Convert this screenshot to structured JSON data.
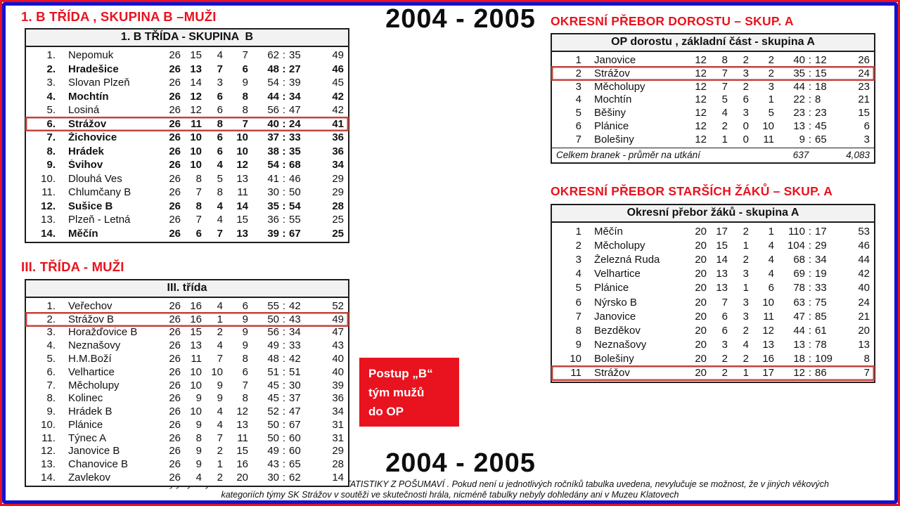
{
  "season": {
    "top": "2004 - 2005",
    "bottom": "2004 - 2005"
  },
  "tables": [
    {
      "heading": "1. B TŘÍDA , SKUPINA B –MUŽI",
      "table_title": "1. B TŘÍDA - SKUPINA  B",
      "rows": [
        {
          "pos": "1.",
          "team": "Nepomuk",
          "gp": "26",
          "w": "15",
          "d": "4",
          "l": "7",
          "gf": "62",
          "ga": "35",
          "pts": "49",
          "bold": false,
          "highlight": false
        },
        {
          "pos": "2.",
          "team": "Hradešice",
          "gp": "26",
          "w": "13",
          "d": "7",
          "l": "6",
          "gf": "48",
          "ga": "27",
          "pts": "46",
          "bold": true,
          "highlight": false
        },
        {
          "pos": "3.",
          "team": "Slovan Plzeň",
          "gp": "26",
          "w": "14",
          "d": "3",
          "l": "9",
          "gf": "54",
          "ga": "39",
          "pts": "45",
          "bold": false,
          "highlight": false
        },
        {
          "pos": "4.",
          "team": "Mochtín",
          "gp": "26",
          "w": "12",
          "d": "6",
          "l": "8",
          "gf": "44",
          "ga": "34",
          "pts": "42",
          "bold": true,
          "highlight": false
        },
        {
          "pos": "5.",
          "team": "Losiná",
          "gp": "26",
          "w": "12",
          "d": "6",
          "l": "8",
          "gf": "56",
          "ga": "47",
          "pts": "42",
          "bold": false,
          "highlight": false
        },
        {
          "pos": "6.",
          "team": "Strážov",
          "gp": "26",
          "w": "11",
          "d": "8",
          "l": "7",
          "gf": "40",
          "ga": "24",
          "pts": "41",
          "bold": true,
          "highlight": true
        },
        {
          "pos": "7.",
          "team": "Žichovice",
          "gp": "26",
          "w": "10",
          "d": "6",
          "l": "10",
          "gf": "37",
          "ga": "33",
          "pts": "36",
          "bold": true,
          "highlight": false
        },
        {
          "pos": "8.",
          "team": "Hrádek",
          "gp": "26",
          "w": "10",
          "d": "6",
          "l": "10",
          "gf": "38",
          "ga": "35",
          "pts": "36",
          "bold": true,
          "highlight": false
        },
        {
          "pos": "9.",
          "team": "Švihov",
          "gp": "26",
          "w": "10",
          "d": "4",
          "l": "12",
          "gf": "54",
          "ga": "68",
          "pts": "34",
          "bold": true,
          "highlight": false
        },
        {
          "pos": "10.",
          "team": "Dlouhá Ves",
          "gp": "26",
          "w": "8",
          "d": "5",
          "l": "13",
          "gf": "41",
          "ga": "46",
          "pts": "29",
          "bold": false,
          "highlight": false
        },
        {
          "pos": "11.",
          "team": "Chlumčany B",
          "gp": "26",
          "w": "7",
          "d": "8",
          "l": "11",
          "gf": "30",
          "ga": "50",
          "pts": "29",
          "bold": false,
          "highlight": false
        },
        {
          "pos": "12.",
          "team": "Sušice  B",
          "gp": "26",
          "w": "8",
          "d": "4",
          "l": "14",
          "gf": "35",
          "ga": "54",
          "pts": "28",
          "bold": true,
          "highlight": false
        },
        {
          "pos": "13.",
          "team": "Plzeň - Letná",
          "gp": "26",
          "w": "7",
          "d": "4",
          "l": "15",
          "gf": "36",
          "ga": "55",
          "pts": "25",
          "bold": false,
          "highlight": false
        },
        {
          "pos": "14.",
          "team": "Měčín",
          "gp": "26",
          "w": "6",
          "d": "7",
          "l": "13",
          "gf": "39",
          "ga": "67",
          "pts": "25",
          "bold": true,
          "highlight": false
        }
      ]
    },
    {
      "heading": "III. TŘÍDA - MUŽI",
      "table_title": "III. třída",
      "rows": [
        {
          "pos": "1.",
          "team": "Veřechov",
          "gp": "26",
          "w": "16",
          "d": "4",
          "l": "6",
          "gf": "55",
          "ga": "42",
          "pts": "52",
          "bold": false,
          "highlight": false
        },
        {
          "pos": "2.",
          "team": "Strážov B",
          "gp": "26",
          "w": "16",
          "d": "1",
          "l": "9",
          "gf": "50",
          "ga": "43",
          "pts": "49",
          "bold": false,
          "highlight": true
        },
        {
          "pos": "3.",
          "team": "Horažďovice  B",
          "gp": "26",
          "w": "15",
          "d": "2",
          "l": "9",
          "gf": "56",
          "ga": "34",
          "pts": "47",
          "bold": false,
          "highlight": false
        },
        {
          "pos": "4.",
          "team": "Neznašovy",
          "gp": "26",
          "w": "13",
          "d": "4",
          "l": "9",
          "gf": "49",
          "ga": "33",
          "pts": "43",
          "bold": false,
          "highlight": false
        },
        {
          "pos": "5.",
          "team": "H.M.Boží",
          "gp": "26",
          "w": "11",
          "d": "7",
          "l": "8",
          "gf": "48",
          "ga": "42",
          "pts": "40",
          "bold": false,
          "highlight": false
        },
        {
          "pos": "6.",
          "team": "Velhartice",
          "gp": "26",
          "w": "10",
          "d": "10",
          "l": "6",
          "gf": "51",
          "ga": "51",
          "pts": "40",
          "bold": false,
          "highlight": false
        },
        {
          "pos": "7.",
          "team": "Měcholupy",
          "gp": "26",
          "w": "10",
          "d": "9",
          "l": "7",
          "gf": "45",
          "ga": "30",
          "pts": "39",
          "bold": false,
          "highlight": false
        },
        {
          "pos": "8.",
          "team": "Kolinec",
          "gp": "26",
          "w": "9",
          "d": "9",
          "l": "8",
          "gf": "45",
          "ga": "37",
          "pts": "36",
          "bold": false,
          "highlight": false
        },
        {
          "pos": "9.",
          "team": "Hrádek  B",
          "gp": "26",
          "w": "10",
          "d": "4",
          "l": "12",
          "gf": "52",
          "ga": "47",
          "pts": "34",
          "bold": false,
          "highlight": false
        },
        {
          "pos": "10.",
          "team": "Plánice",
          "gp": "26",
          "w": "9",
          "d": "4",
          "l": "13",
          "gf": "50",
          "ga": "67",
          "pts": "31",
          "bold": false,
          "highlight": false
        },
        {
          "pos": "11.",
          "team": "Týnec A",
          "gp": "26",
          "w": "8",
          "d": "7",
          "l": "11",
          "gf": "50",
          "ga": "60",
          "pts": "31",
          "bold": false,
          "highlight": false
        },
        {
          "pos": "12.",
          "team": "Janovice  B",
          "gp": "26",
          "w": "9",
          "d": "2",
          "l": "15",
          "gf": "49",
          "ga": "60",
          "pts": "29",
          "bold": false,
          "highlight": false
        },
        {
          "pos": "13.",
          "team": "Chanovice B",
          "gp": "26",
          "w": "9",
          "d": "1",
          "l": "16",
          "gf": "43",
          "ga": "65",
          "pts": "28",
          "bold": false,
          "highlight": false
        },
        {
          "pos": "14.",
          "team": "Zavlekov",
          "gp": "26",
          "w": "4",
          "d": "2",
          "l": "20",
          "gf": "30",
          "ga": "62",
          "pts": "14",
          "bold": false,
          "highlight": false
        }
      ]
    },
    {
      "heading": "OKRESNÍ PŘEBOR  DOROSTU – SKUP. A",
      "table_title": "OP dorostu , základní část - skupina A",
      "rows": [
        {
          "pos": "1",
          "team": "Janovice",
          "gp": "12",
          "w": "8",
          "d": "2",
          "l": "2",
          "gf": "40",
          "ga": "12",
          "pts": "26",
          "bold": false,
          "highlight": false
        },
        {
          "pos": "2",
          "team": "Strážov",
          "gp": "12",
          "w": "7",
          "d": "3",
          "l": "2",
          "gf": "35",
          "ga": "15",
          "pts": "24",
          "bold": false,
          "highlight": true
        },
        {
          "pos": "3",
          "team": "Měcholupy",
          "gp": "12",
          "w": "7",
          "d": "2",
          "l": "3",
          "gf": "44",
          "ga": "18",
          "pts": "23",
          "bold": false,
          "highlight": false
        },
        {
          "pos": "4",
          "team": "Mochtín",
          "gp": "12",
          "w": "5",
          "d": "6",
          "l": "1",
          "gf": "22",
          "ga": "8",
          "pts": "21",
          "bold": false,
          "highlight": false
        },
        {
          "pos": "5",
          "team": "Běšiny",
          "gp": "12",
          "w": "4",
          "d": "3",
          "l": "5",
          "gf": "23",
          "ga": "23",
          "pts": "15",
          "bold": false,
          "highlight": false
        },
        {
          "pos": "6",
          "team": "Plánice",
          "gp": "12",
          "w": "2",
          "d": "0",
          "l": "10",
          "gf": "13",
          "ga": "45",
          "pts": "6",
          "bold": false,
          "highlight": false
        },
        {
          "pos": "7",
          "team": "Bolešiny",
          "gp": "12",
          "w": "1",
          "d": "0",
          "l": "11",
          "gf": "9",
          "ga": "65",
          "pts": "3",
          "bold": false,
          "highlight": false
        }
      ],
      "footer": {
        "label": "Celkem branek  - průměr na utkání",
        "goals": "637",
        "avg": "4,083"
      }
    },
    {
      "heading": "OKRESNÍ PŘEBOR  STARŠÍCH ŽÁKŮ – SKUP. A",
      "table_title": "Okresní přebor žáků - skupina A",
      "rows": [
        {
          "pos": "1",
          "team": "Měčín",
          "gp": "20",
          "w": "17",
          "d": "2",
          "l": "1",
          "gf": "110",
          "ga": "17",
          "pts": "53",
          "bold": false,
          "highlight": false
        },
        {
          "pos": "2",
          "team": "Měcholupy",
          "gp": "20",
          "w": "15",
          "d": "1",
          "l": "4",
          "gf": "104",
          "ga": "29",
          "pts": "46",
          "bold": false,
          "highlight": false
        },
        {
          "pos": "3",
          "team": "Železná Ruda",
          "gp": "20",
          "w": "14",
          "d": "2",
          "l": "4",
          "gf": "68",
          "ga": "34",
          "pts": "44",
          "bold": false,
          "highlight": false
        },
        {
          "pos": "4",
          "team": "Velhartice",
          "gp": "20",
          "w": "13",
          "d": "3",
          "l": "4",
          "gf": "69",
          "ga": "19",
          "pts": "42",
          "bold": false,
          "highlight": false
        },
        {
          "pos": "5",
          "team": "Plánice",
          "gp": "20",
          "w": "13",
          "d": "1",
          "l": "6",
          "gf": "78",
          "ga": "33",
          "pts": "40",
          "bold": false,
          "highlight": false
        },
        {
          "pos": "6",
          "team": "Nýrsko  B",
          "gp": "20",
          "w": "7",
          "d": "3",
          "l": "10",
          "gf": "63",
          "ga": "75",
          "pts": "24",
          "bold": false,
          "highlight": false
        },
        {
          "pos": "7",
          "team": "Janovice",
          "gp": "20",
          "w": "6",
          "d": "3",
          "l": "11",
          "gf": "47",
          "ga": "85",
          "pts": "21",
          "bold": false,
          "highlight": false
        },
        {
          "pos": "8",
          "team": "Bezděkov",
          "gp": "20",
          "w": "6",
          "d": "2",
          "l": "12",
          "gf": "44",
          "ga": "61",
          "pts": "20",
          "bold": false,
          "highlight": false
        },
        {
          "pos": "9",
          "team": "Neznašovy",
          "gp": "20",
          "w": "3",
          "d": "4",
          "l": "13",
          "gf": "13",
          "ga": "78",
          "pts": "13",
          "bold": false,
          "highlight": false
        },
        {
          "pos": "10",
          "team": "Bolešiny",
          "gp": "20",
          "w": "2",
          "d": "2",
          "l": "16",
          "gf": "18",
          "ga": "109",
          "pts": "8",
          "bold": false,
          "highlight": false
        },
        {
          "pos": "11",
          "team": "Strážov",
          "gp": "20",
          "w": "2",
          "d": "1",
          "l": "17",
          "gf": "12",
          "ga": "86",
          "pts": "7",
          "bold": false,
          "highlight": true
        }
      ]
    }
  ],
  "callout": {
    "line1": "Postup „B“",
    "line2": "tým mužů",
    "line3": "do OP"
  },
  "footnote": {
    "line1": "Při dohledávání tabulek byly využity SEDLMAIEROVY FOTBALOVÉ STATISTIKY  Z POŠUMAVÍ . Pokud není u jednotlivých ročníků tabulka uvedena, nevylučuje se možnost, že v jiných věkových",
    "line2": "kategoriích týmy  SK Strážov v soutěži ve skutečnosti hrála, nicméně tabulky nebyly dohledány ani v Muzeu Klatovech"
  },
  "colors": {
    "accent_red": "#e8131e",
    "frame_blue": "#1212cf",
    "highlight_border": "#c2443e",
    "table_header_bg": "#f2f2f2"
  }
}
